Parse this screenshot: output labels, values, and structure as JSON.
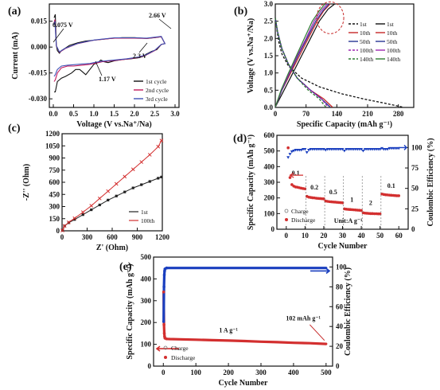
{
  "chart_data": [
    {
      "panel": "(a)",
      "type": "line",
      "xlabel": "Voltage (V vs.Na⁺/Na)",
      "ylabel": "Current (mA)",
      "xlim": [
        0,
        3.0
      ],
      "ylim": [
        -0.035,
        0.025
      ],
      "xticks": [
        "0.0",
        "0.5",
        "1.0",
        "1.5",
        "2.0",
        "2.5",
        "3.0"
      ],
      "yticks": [
        "-0.030",
        "-0.015",
        "0.000",
        "0.015"
      ],
      "annotations": [
        "0.075 V",
        "2.66 V",
        "2.3 V",
        "1.17 V"
      ],
      "legend": [
        "1st cycle",
        "2nd cycle",
        "3rd cycle"
      ],
      "colors": [
        "#111111",
        "#c2185b",
        "#3f51b5"
      ],
      "series": [
        {
          "name": "1st cycle",
          "x": [
            0.02,
            0.05,
            0.1,
            0.2,
            0.3,
            0.45,
            0.55,
            0.65,
            0.8,
            0.9,
            1.0,
            1.1,
            1.17,
            1.25,
            1.35,
            1.5,
            1.7,
            1.9,
            2.1,
            2.2,
            2.3,
            2.42,
            2.55,
            2.66,
            2.75,
            2.66,
            2.5,
            2.3,
            2.0,
            1.7,
            1.4,
            1.2,
            1.0,
            0.8,
            0.6,
            0.4,
            0.3,
            0.2,
            0.15,
            0.1,
            0.075,
            0.05,
            0.02
          ],
          "y": [
            -0.026,
            -0.026,
            -0.02,
            -0.018,
            -0.017,
            -0.015,
            -0.013,
            -0.013,
            -0.016,
            -0.013,
            -0.01,
            -0.009,
            -0.0075,
            -0.0085,
            -0.009,
            -0.008,
            -0.0072,
            -0.0068,
            -0.0062,
            -0.0055,
            -0.004,
            -0.0025,
            -0.0015,
            0.0015,
            0.002,
            0.006,
            0.0055,
            0.005,
            0.0055,
            0.0055,
            0.005,
            0.0045,
            0.004,
            0.0035,
            0.0025,
            0.001,
            -0.0005,
            -0.002,
            -0.0035,
            -0.002,
            0.001,
            0.019,
            0.017
          ]
        },
        {
          "name": "2nd cycle",
          "x": [
            0.02,
            0.05,
            0.1,
            0.2,
            0.35,
            0.5,
            0.7,
            0.9,
            1.0,
            1.2,
            1.5,
            1.8,
            2.1,
            2.3,
            2.5,
            2.66,
            2.75,
            2.66,
            2.3,
            2.0,
            1.5,
            1.0,
            0.6,
            0.3,
            0.15,
            0.075,
            0.04,
            0.02
          ],
          "y": [
            -0.02,
            -0.019,
            -0.015,
            -0.012,
            -0.011,
            -0.011,
            -0.0105,
            -0.01,
            -0.0095,
            -0.0085,
            -0.0078,
            -0.007,
            -0.006,
            -0.0045,
            -0.002,
            0.0015,
            0.002,
            0.006,
            0.005,
            0.0052,
            0.0052,
            0.004,
            0.002,
            -0.0008,
            -0.003,
            0.0008,
            0.016,
            0.014
          ]
        },
        {
          "name": "3rd cycle",
          "x": [
            0.02,
            0.05,
            0.1,
            0.2,
            0.35,
            0.5,
            0.7,
            0.9,
            1.0,
            1.2,
            1.5,
            1.8,
            2.1,
            2.3,
            2.5,
            2.66,
            2.75,
            2.66,
            2.3,
            2.0,
            1.5,
            1.0,
            0.6,
            0.3,
            0.15,
            0.075,
            0.04,
            0.02
          ],
          "y": [
            -0.017,
            -0.016,
            -0.013,
            -0.011,
            -0.0105,
            -0.0102,
            -0.0098,
            -0.0095,
            -0.009,
            -0.0082,
            -0.0075,
            -0.0068,
            -0.0058,
            -0.0043,
            -0.0018,
            0.0016,
            0.002,
            0.0062,
            0.0052,
            0.0054,
            0.0054,
            0.0041,
            0.0021,
            -0.0006,
            -0.0028,
            0.0008,
            0.015,
            0.013
          ]
        }
      ]
    },
    {
      "panel": "(b)",
      "type": "line",
      "xlabel": "Specific Capacity (mAh g⁻¹)",
      "ylabel": "Voltage (V vs.Na⁺/Na)",
      "xlim": [
        0,
        315
      ],
      "ylim": [
        0,
        3.0
      ],
      "xticks": [
        "0",
        "70",
        "140",
        "210",
        "280"
      ],
      "yticks": [
        "0.0",
        "0.5",
        "1.0",
        "1.5",
        "2.0",
        "2.5",
        "3.0"
      ],
      "legend": [
        [
          "1st",
          "1st"
        ],
        [
          "10th",
          "10th"
        ],
        [
          "50th",
          "50th"
        ],
        [
          "100th",
          "100th"
        ],
        [
          "140th",
          "140th"
        ]
      ],
      "colors": [
        "#111111",
        "#c62828",
        "#283593",
        "#9c27b0",
        "#2e7d32"
      ],
      "series": [
        {
          "name": "1st",
          "discharge": {
            "x": [
              0,
              3,
              8,
              15,
              30,
              60,
              100,
              150,
              200,
              250,
              290
            ],
            "y": [
              2.6,
              2.3,
              1.9,
              1.55,
              1.2,
              0.85,
              0.6,
              0.4,
              0.25,
              0.12,
              0.01
            ]
          },
          "charge": {
            "x": [
              0,
              20,
              40,
              60,
              80,
              100,
              120,
              135
            ],
            "y": [
              0.01,
              0.5,
              1.0,
              1.5,
              2.0,
              2.5,
              2.85,
              3.0
            ]
          }
        },
        {
          "name": "10th",
          "discharge": {
            "x": [
              0,
              5,
              15,
              30,
              50,
              80,
              110,
              130
            ],
            "y": [
              2.6,
              2.2,
              1.7,
              1.25,
              0.85,
              0.5,
              0.25,
              0.01
            ]
          },
          "charge": {
            "x": [
              0,
              15,
              35,
              55,
              75,
              95,
              110,
              125
            ],
            "y": [
              0.01,
              0.5,
              1.0,
              1.5,
              2.0,
              2.5,
              2.8,
              3.0
            ]
          }
        },
        {
          "name": "50th",
          "discharge": {
            "x": [
              0,
              5,
              15,
              30,
              50,
              80,
              105,
              125
            ],
            "y": [
              2.6,
              2.2,
              1.7,
              1.25,
              0.85,
              0.5,
              0.25,
              0.01
            ]
          },
          "charge": {
            "x": [
              0,
              15,
              33,
              52,
              72,
              92,
              108,
              122
            ],
            "y": [
              0.01,
              0.5,
              1.0,
              1.5,
              2.0,
              2.5,
              2.8,
              3.0
            ]
          }
        },
        {
          "name": "100th",
          "discharge": {
            "x": [
              0,
              5,
              15,
              30,
              50,
              80,
              105,
              120
            ],
            "y": [
              2.6,
              2.2,
              1.7,
              1.25,
              0.85,
              0.5,
              0.25,
              0.01
            ]
          },
          "charge": {
            "x": [
              0,
              14,
              32,
              50,
              70,
              88,
              104,
              118
            ],
            "y": [
              0.01,
              0.5,
              1.0,
              1.5,
              2.0,
              2.5,
              2.8,
              3.0
            ]
          }
        },
        {
          "name": "140th",
          "discharge": {
            "x": [
              0,
              5,
              15,
              30,
              50,
              75,
              100,
              115
            ],
            "y": [
              2.6,
              2.2,
              1.7,
              1.25,
              0.85,
              0.5,
              0.25,
              0.01
            ]
          },
          "charge": {
            "x": [
              0,
              13,
              30,
              48,
              66,
              84,
              100,
              113
            ],
            "y": [
              0.01,
              0.5,
              1.0,
              1.5,
              2.0,
              2.5,
              2.8,
              3.0
            ]
          }
        }
      ]
    },
    {
      "panel": "(c)",
      "type": "line",
      "xlabel": "Z' (Ohm)",
      "ylabel": "-Z'' (Ohm)",
      "xlim": [
        0,
        1200
      ],
      "ylim": [
        0,
        1200
      ],
      "xticks": [
        "0",
        "300",
        "600",
        "900",
        "1200"
      ],
      "yticks": [
        "0",
        "150",
        "300",
        "450",
        "600",
        "750",
        "900",
        "1050",
        "1200"
      ],
      "legend": [
        "1st",
        "100th"
      ],
      "colors": [
        "#222222",
        "#d32f2f"
      ],
      "series": [
        {
          "name": "1st",
          "x": [
            5,
            30,
            80,
            150,
            250,
            350,
            450,
            550,
            650,
            750,
            850,
            950,
            1050,
            1150,
            1190
          ],
          "y": [
            5,
            60,
            100,
            140,
            200,
            260,
            320,
            380,
            430,
            480,
            530,
            570,
            610,
            650,
            665
          ]
        },
        {
          "name": "100th",
          "x": [
            5,
            30,
            80,
            150,
            250,
            350,
            450,
            550,
            650,
            750,
            850,
            950,
            1050,
            1150,
            1190
          ],
          "y": [
            5,
            60,
            105,
            155,
            230,
            310,
            400,
            490,
            580,
            670,
            760,
            850,
            940,
            1040,
            1115
          ]
        }
      ]
    },
    {
      "panel": "(d)",
      "type": "scatter",
      "xlabel": "Cycle Number",
      "ylabel": "Specific Capacity (mAh g⁻¹)",
      "y2label": "Coulombic Efficiency (%)",
      "xlim": [
        -5,
        65
      ],
      "ylim": [
        0,
        600
      ],
      "y2lim": [
        0,
        115
      ],
      "xticks": [
        "0",
        "10",
        "20",
        "30",
        "40",
        "50",
        "60"
      ],
      "yticks": [
        "0",
        "100",
        "200",
        "300",
        "400",
        "500",
        "600"
      ],
      "y2ticks": [
        "0",
        "25",
        "50",
        "75",
        "100"
      ],
      "rate_labels": [
        "0.1",
        "0.2",
        "0.5",
        "1",
        "2",
        "0.1"
      ],
      "unit_label": "Unit:A g⁻¹",
      "legend": [
        "Charge",
        "Discharge"
      ],
      "colors": [
        "#d32f2f",
        "#1a3fbf"
      ],
      "series": [
        {
          "name": "Discharge",
          "x": [
            1,
            2,
            3,
            4,
            5,
            6,
            7,
            8,
            9,
            10,
            11,
            12,
            13,
            14,
            15,
            16,
            17,
            18,
            19,
            20,
            21,
            22,
            23,
            24,
            25,
            26,
            27,
            28,
            29,
            30,
            31,
            32,
            33,
            34,
            35,
            36,
            37,
            38,
            39,
            40,
            41,
            42,
            43,
            44,
            45,
            46,
            47,
            48,
            49,
            50,
            51,
            52,
            53,
            54,
            55,
            56,
            57,
            58,
            59,
            60
          ],
          "y": [
            520,
            330,
            285,
            275,
            270,
            268,
            265,
            262,
            260,
            258,
            210,
            205,
            203,
            201,
            200,
            198,
            197,
            196,
            195,
            194,
            180,
            178,
            176,
            175,
            174,
            173,
            172,
            171,
            170,
            169,
            130,
            128,
            127,
            126,
            125,
            124,
            123,
            122,
            121,
            120,
            105,
            103,
            102,
            101,
            100,
            100,
            99,
            99,
            98,
            98,
            225,
            222,
            220,
            219,
            218,
            217,
            216,
            215,
            214,
            214
          ]
        },
        {
          "name": "Coulombic Efficiency",
          "x": [
            1,
            2,
            3,
            4,
            5,
            6,
            7,
            8,
            9,
            10,
            11,
            12,
            13,
            14,
            15,
            16,
            17,
            18,
            19,
            20,
            21,
            22,
            23,
            24,
            25,
            26,
            27,
            28,
            29,
            30,
            31,
            32,
            33,
            34,
            35,
            36,
            37,
            38,
            39,
            40,
            41,
            42,
            43,
            44,
            45,
            46,
            47,
            48,
            49,
            50,
            51,
            52,
            53,
            54,
            55,
            56,
            57,
            58,
            59,
            60
          ],
          "y": [
            88,
            92,
            95,
            96,
            97,
            97,
            97,
            97,
            98,
            98,
            94,
            97,
            98,
            98,
            98,
            98,
            98,
            98,
            98,
            98,
            97,
            98,
            98,
            98,
            98,
            98,
            98,
            98,
            98,
            98,
            96,
            98,
            98,
            98,
            98,
            98,
            98,
            98,
            98,
            98,
            96,
            98,
            98,
            98,
            98,
            98,
            98,
            98,
            98,
            98,
            99,
            98,
            98,
            98,
            99,
            99,
            99,
            99,
            99,
            99
          ]
        }
      ]
    },
    {
      "panel": "(e)",
      "type": "scatter",
      "xlabel": "Cycle Number",
      "ylabel": "Specific Capacity (mAh g⁻¹)",
      "y2label": "Coulombic Efficiency (%)",
      "xlim": [
        -30,
        520
      ],
      "ylim": [
        0,
        500
      ],
      "y2lim": [
        0,
        110
      ],
      "xticks": [
        "0",
        "100",
        "200",
        "300",
        "400",
        "500"
      ],
      "yticks": [
        "0",
        "100",
        "200",
        "300",
        "400",
        "500"
      ],
      "y2ticks": [
        "0",
        "20",
        "40",
        "60",
        "80",
        "100"
      ],
      "annotations": [
        "1 A g⁻¹",
        "102 mAh g⁻¹"
      ],
      "legend": [
        "Charge",
        "Discharge"
      ],
      "colors": [
        "#d32f2f",
        "#1a3fbf"
      ],
      "series": [
        {
          "name": "Discharge",
          "x": [
            1,
            2,
            3,
            4,
            5,
            10,
            20,
            50,
            100,
            150,
            200,
            250,
            300,
            350,
            400,
            450,
            500
          ],
          "y": [
            340,
            190,
            150,
            135,
            128,
            125,
            124,
            123,
            121,
            119,
            117,
            115,
            112,
            110,
            107,
            105,
            102
          ]
        },
        {
          "name": "Coulombic Efficiency",
          "x": [
            1,
            2,
            3,
            4,
            5,
            10,
            20,
            50,
            100,
            150,
            200,
            250,
            300,
            350,
            400,
            450,
            500
          ],
          "y": [
            45,
            80,
            92,
            96,
            98,
            99,
            99,
            99,
            99,
            99,
            99,
            99,
            99,
            99,
            99,
            99,
            99
          ]
        }
      ]
    }
  ]
}
